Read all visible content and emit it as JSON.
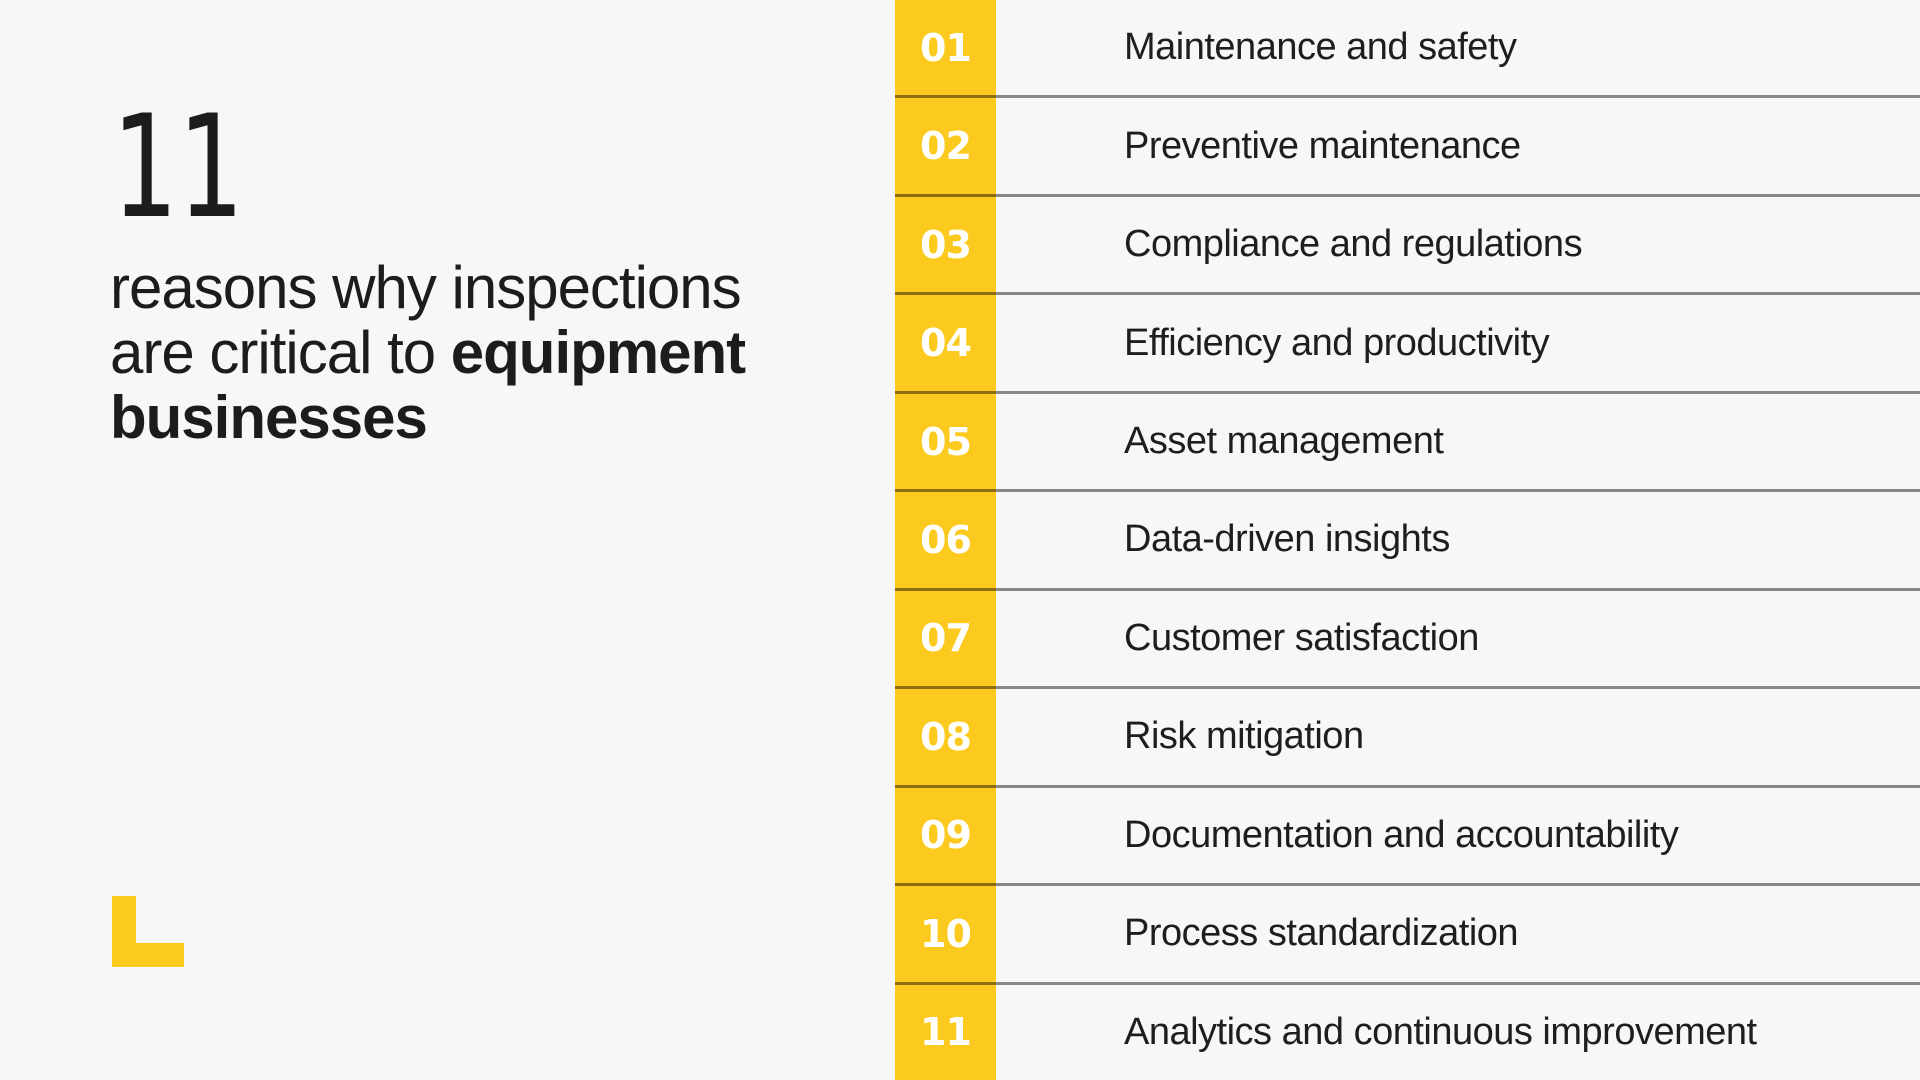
{
  "page": {
    "background_color": "#f7f7f7",
    "accent_yellow": "#fcca1e",
    "text_color": "#1c1c1c",
    "divider_color": "rgba(0,0,0,0.45)"
  },
  "intro": {
    "big_number": "11",
    "headline_lines": [
      {
        "regular": "reasons why inspections",
        "bold": ""
      },
      {
        "regular": "are critical to ",
        "bold": "equipment"
      },
      {
        "regular": "",
        "bold": "businesses"
      }
    ],
    "logo": "yellow-L-mark"
  },
  "reasons": {
    "items": [
      {
        "num": "01",
        "label": "Maintenance and safety"
      },
      {
        "num": "02",
        "label": "Preventive maintenance"
      },
      {
        "num": "03",
        "label": "Compliance and regulations"
      },
      {
        "num": "04",
        "label": "Efficiency and productivity"
      },
      {
        "num": "05",
        "label": "Asset management"
      },
      {
        "num": "06",
        "label": "Data-driven insights"
      },
      {
        "num": "07",
        "label": "Customer satisfaction"
      },
      {
        "num": "08",
        "label": "Risk mitigation"
      },
      {
        "num": "09",
        "label": "Documentation and accountability"
      },
      {
        "num": "10",
        "label": "Process standardization"
      },
      {
        "num": "11",
        "label": "Analytics and continuous improvement"
      }
    ]
  }
}
